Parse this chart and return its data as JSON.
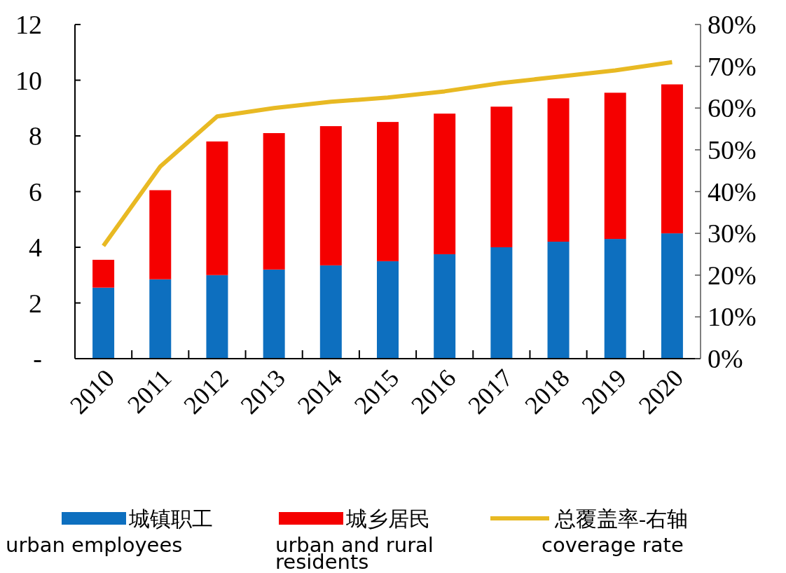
{
  "chart_data": {
    "type": "bar",
    "stacked": true,
    "categories": [
      "2010",
      "2011",
      "2012",
      "2013",
      "2014",
      "2015",
      "2016",
      "2017",
      "2018",
      "2019",
      "2020"
    ],
    "series": [
      {
        "name": "城镇职工\nurban employees",
        "color": "#0d6fbf",
        "values": [
          2.55,
          2.85,
          3.0,
          3.2,
          3.35,
          3.5,
          3.75,
          4.0,
          4.2,
          4.3,
          4.5
        ]
      },
      {
        "name": "城乡居民\nurban and rural\nresidents",
        "color": "#f50000",
        "values": [
          1.0,
          3.2,
          4.8,
          4.9,
          5.0,
          5.0,
          5.05,
          5.05,
          5.15,
          5.25,
          5.35
        ]
      },
      {
        "name": "总覆盖率-右轴\ncoverage rate",
        "color": "#e8b923",
        "type": "line",
        "axis": "y2",
        "values": [
          27,
          46,
          58,
          60,
          61.5,
          62.5,
          64,
          66,
          67.5,
          69,
          71
        ]
      }
    ],
    "ylim": [
      0,
      12
    ],
    "yticks": [
      {
        "value": 0,
        "label": "-"
      },
      2,
      4,
      6,
      8,
      10,
      12
    ],
    "y2lim": [
      0,
      80
    ],
    "y2ticks": [
      {
        "value": 0,
        "label": "0%"
      },
      {
        "value": 10,
        "label": "10%"
      },
      {
        "value": 20,
        "label": "20%"
      },
      {
        "value": 30,
        "label": "30%"
      },
      {
        "value": 40,
        "label": "40%"
      },
      {
        "value": 50,
        "label": "50%"
      },
      {
        "value": 60,
        "label": "60%"
      },
      {
        "value": 70,
        "label": "70%"
      },
      {
        "value": 80,
        "label": "80%"
      }
    ],
    "grid": false,
    "legend": "bottom",
    "marker": "none",
    "line_style": "solid"
  }
}
